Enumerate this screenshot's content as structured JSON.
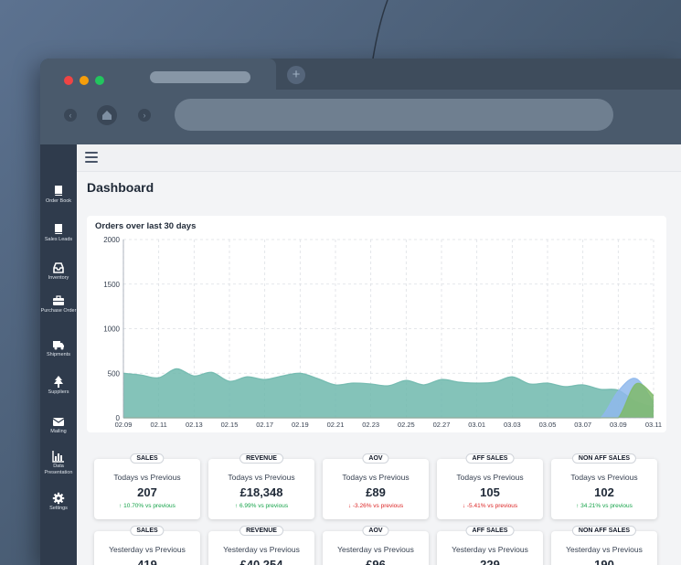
{
  "window": {
    "tab_title": "",
    "new_tab_symbol": "+"
  },
  "sidebar": {
    "items": [
      {
        "label": "Order Book",
        "icon": "book-icon"
      },
      {
        "label": "Sales Leads",
        "icon": "book-icon"
      },
      {
        "label": "Inventory",
        "icon": "inbox-icon"
      },
      {
        "label": "Purchase Order",
        "icon": "briefcase-icon"
      },
      {
        "label": "Shipments",
        "icon": "truck-icon"
      },
      {
        "label": "Suppliers",
        "icon": "tree-icon"
      },
      {
        "label": "Mailing",
        "icon": "envelope-icon"
      },
      {
        "label": "Data Presentation",
        "icon": "bar-chart-icon"
      },
      {
        "label": "Settings",
        "icon": "gear-icon"
      }
    ]
  },
  "page": {
    "title": "Dashboard"
  },
  "chart_data": {
    "type": "area",
    "title": "Orders over last 30 days",
    "xlabel": "",
    "ylabel": "",
    "ylim": [
      0,
      2000
    ],
    "yticks": [
      0,
      500,
      1000,
      1500,
      2000
    ],
    "x": [
      "02.09",
      "02.10",
      "02.11",
      "02.12",
      "02.13",
      "02.14",
      "02.15",
      "02.16",
      "02.17",
      "02.18",
      "02.19",
      "02.20",
      "02.21",
      "02.22",
      "02.23",
      "02.24",
      "02.25",
      "02.26",
      "02.27",
      "02.28",
      "03.01",
      "03.02",
      "03.03",
      "03.04",
      "03.05",
      "03.06",
      "03.07",
      "03.08",
      "03.09",
      "03.10",
      "03.11"
    ],
    "xtick_labels": [
      "02.09",
      "02.11",
      "02.13",
      "02.15",
      "02.17",
      "02.19",
      "02.21",
      "02.23",
      "02.25",
      "02.27",
      "03.01",
      "03.03",
      "03.05",
      "03.07",
      "03.09",
      "03.11"
    ],
    "grid": true,
    "series": [
      {
        "name": "",
        "color": "#6fb8ad",
        "values": [
          500,
          480,
          450,
          550,
          470,
          510,
          410,
          460,
          430,
          470,
          500,
          440,
          370,
          390,
          380,
          360,
          420,
          370,
          430,
          400,
          390,
          400,
          460,
          380,
          390,
          350,
          370,
          320,
          310,
          180,
          120
        ]
      },
      {
        "name": "",
        "color": "#8fb8ec",
        "values": [
          0,
          0,
          0,
          0,
          0,
          0,
          0,
          0,
          0,
          0,
          0,
          0,
          0,
          0,
          0,
          0,
          0,
          0,
          0,
          0,
          0,
          0,
          0,
          0,
          0,
          0,
          0,
          0,
          300,
          440,
          170
        ]
      },
      {
        "name": "",
        "color": "#7fba6a",
        "values": [
          0,
          0,
          0,
          0,
          0,
          0,
          0,
          0,
          0,
          0,
          0,
          0,
          0,
          0,
          0,
          0,
          0,
          0,
          0,
          0,
          0,
          0,
          0,
          0,
          0,
          0,
          0,
          0,
          0,
          380,
          250
        ]
      }
    ]
  },
  "stats_today": [
    {
      "label": "SALES",
      "sub": "Todays vs Previous",
      "value": "207",
      "change": "10.70% vs previous",
      "direction": "up"
    },
    {
      "label": "REVENUE",
      "sub": "Todays vs Previous",
      "value": "£18,348",
      "change": "6.99% vs previous",
      "direction": "up"
    },
    {
      "label": "AOV",
      "sub": "Todays vs Previous",
      "value": "£89",
      "change": "-3.26% vs previous",
      "direction": "down"
    },
    {
      "label": "AFF SALES",
      "sub": "Todays vs Previous",
      "value": "105",
      "change": "-5.41% vs previous",
      "direction": "down"
    },
    {
      "label": "NON AFF SALES",
      "sub": "Todays vs Previous",
      "value": "102",
      "change": "34.21% vs previous",
      "direction": "up"
    }
  ],
  "stats_yesterday": [
    {
      "label": "SALES",
      "sub": "Yesterday vs Previous",
      "value": "419"
    },
    {
      "label": "REVENUE",
      "sub": "Yesterday vs Previous",
      "value": "£40,254"
    },
    {
      "label": "AOV",
      "sub": "Yesterday vs Previous",
      "value": "£96"
    },
    {
      "label": "AFF SALES",
      "sub": "Yesterday vs Previous",
      "value": "229"
    },
    {
      "label": "NON AFF SALES",
      "sub": "Yesterday vs Previous",
      "value": "190"
    }
  ],
  "colors": {
    "sidebar": "#2f3b4c",
    "up": "#16a34a",
    "down": "#dc2626"
  }
}
